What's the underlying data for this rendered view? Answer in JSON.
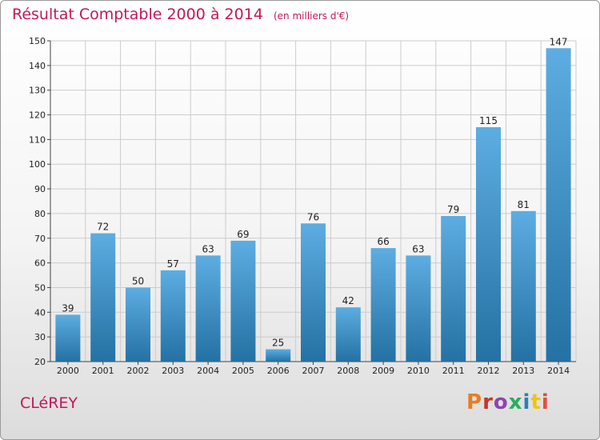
{
  "chart_data": {
    "type": "bar",
    "title": "Résultat Comptable 2000 à 2014",
    "subtitle": "(en milliers d'€)",
    "categories": [
      "2000",
      "2001",
      "2002",
      "2003",
      "2004",
      "2005",
      "2006",
      "2007",
      "2008",
      "2009",
      "2010",
      "2011",
      "2012",
      "2013",
      "2014"
    ],
    "values": [
      39,
      72,
      50,
      57,
      63,
      69,
      25,
      76,
      42,
      66,
      63,
      79,
      115,
      81,
      147
    ],
    "ylim": [
      20,
      150
    ],
    "yticks": [
      20,
      30,
      40,
      50,
      60,
      70,
      80,
      90,
      100,
      110,
      120,
      130,
      140,
      150
    ],
    "xlabel": "",
    "ylabel": "",
    "grid": true,
    "colors": {
      "bar_light": "#5dade2",
      "bar_dark": "#2471a3",
      "grid": "#cccccc"
    }
  },
  "footer": {
    "commune": "CLéREY",
    "brand": "Proxiti"
  },
  "colors": {
    "title": "#c2185b",
    "brand_letters": [
      "#e67e22",
      "#c0392b",
      "#8e44ad",
      "#27ae60",
      "#2980b9",
      "#f1c40f",
      "#e74c3c"
    ]
  }
}
